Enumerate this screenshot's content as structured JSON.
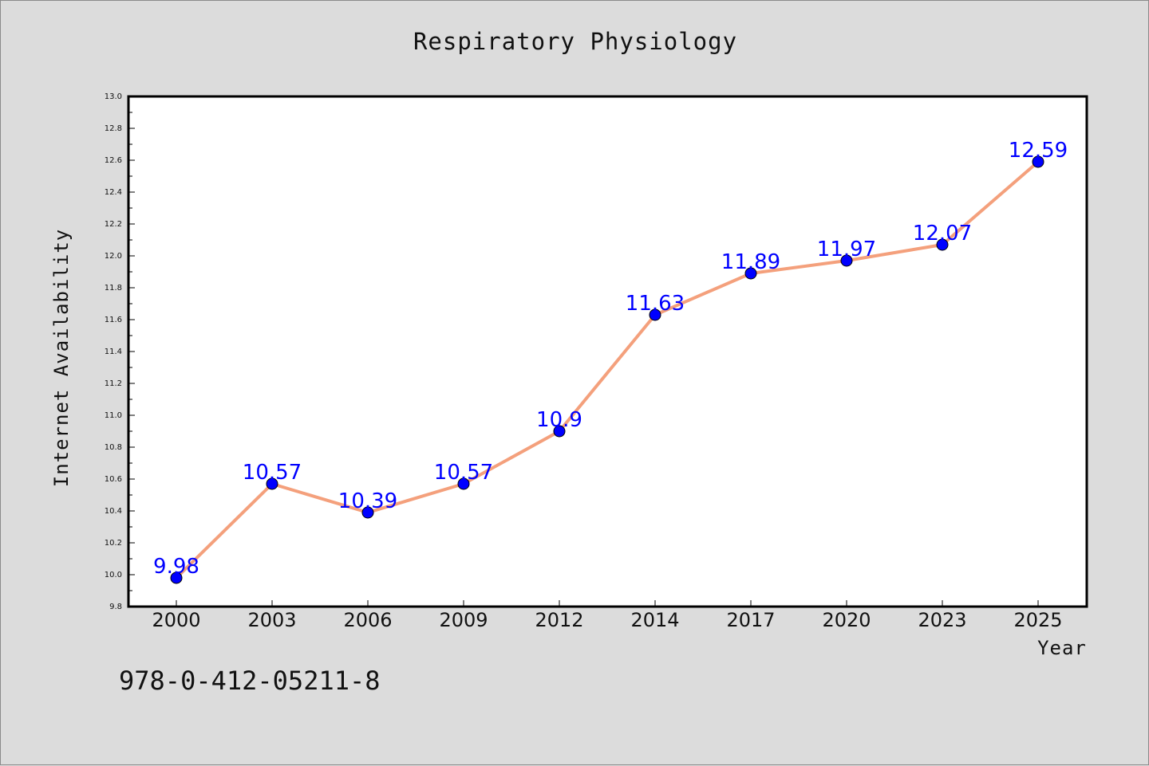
{
  "chart_data": {
    "type": "line",
    "title": "Respiratory Physiology",
    "xlabel": "Year",
    "ylabel": "Internet Availability",
    "categories": [
      "2000",
      "2003",
      "2006",
      "2009",
      "2012",
      "2014",
      "2017",
      "2020",
      "2023",
      "2025"
    ],
    "series": [
      {
        "values": [
          9.98,
          10.57,
          10.39,
          10.57,
          10.9,
          11.63,
          11.89,
          11.97,
          12.07,
          12.59
        ],
        "labels": [
          "9.98",
          "10.57",
          "10.39",
          "10.57",
          "10.9",
          "11.63",
          "11.89",
          "11.97",
          "12.07",
          "12.59"
        ]
      }
    ],
    "ylim": [
      9.8,
      13.0
    ],
    "yticks": [
      "9.8",
      "10.0",
      "10.2",
      "10.4",
      "10.6",
      "10.8",
      "11.0",
      "11.2",
      "11.4",
      "11.6",
      "11.8",
      "12.0",
      "12.2",
      "12.4",
      "12.6",
      "12.8",
      "13.0"
    ],
    "grid": false,
    "legend": "none",
    "line_color": "#f4a07c",
    "marker_color": "#0000ff"
  },
  "footer": {
    "isbn": "978-0-412-05211-8"
  }
}
